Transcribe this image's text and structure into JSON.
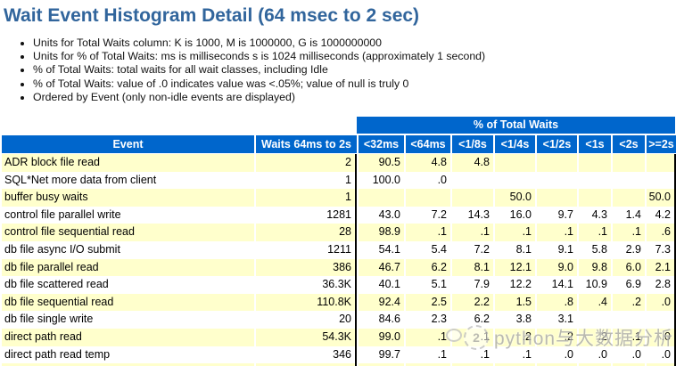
{
  "page": {
    "title": "Wait Event Histogram Detail (64 msec to 2 sec)"
  },
  "notes": [
    "Units for Total Waits column: K is 1000, M is 1000000, G is 1000000000",
    "Units for % of Total Waits: ms is milliseconds s is 1024 milliseconds (approximately 1 second)",
    "% of Total Waits: total waits for all wait classes, including Idle",
    "% of Total Waits: value of .0 indicates value was <.05%; value of null is truly 0",
    "Ordered by Event (only non-idle events are displayed)"
  ],
  "table": {
    "group_header": "% of Total Waits",
    "columns": {
      "event": "Event",
      "waits": "Waits 64ms to 2s",
      "buckets": [
        "<32ms",
        "<64ms",
        "<1/8s",
        "<1/4s",
        "<1/2s",
        "<1s",
        "<2s",
        ">=2s"
      ]
    },
    "rows": [
      {
        "event": "ADR block file read",
        "waits": "2",
        "values": [
          "90.5",
          "4.8",
          "4.8",
          "",
          "",
          "",
          "",
          ""
        ]
      },
      {
        "event": "SQL*Net more data from client",
        "waits": "1",
        "values": [
          "100.0",
          ".0",
          "",
          "",
          "",
          "",
          "",
          ""
        ]
      },
      {
        "event": "buffer busy waits",
        "waits": "1",
        "values": [
          "",
          "",
          "",
          "50.0",
          "",
          "",
          "",
          "50.0"
        ]
      },
      {
        "event": "control file parallel write",
        "waits": "1281",
        "values": [
          "43.0",
          "7.2",
          "14.3",
          "16.0",
          "9.7",
          "4.3",
          "1.4",
          "4.2"
        ]
      },
      {
        "event": "control file sequential read",
        "waits": "28",
        "values": [
          "98.9",
          ".1",
          ".1",
          ".1",
          ".1",
          ".1",
          ".1",
          ".6"
        ]
      },
      {
        "event": "db file async I/O submit",
        "waits": "1211",
        "values": [
          "54.1",
          "5.4",
          "7.2",
          "8.1",
          "9.1",
          "5.8",
          "2.9",
          "7.3"
        ]
      },
      {
        "event": "db file parallel read",
        "waits": "386",
        "values": [
          "46.7",
          "6.2",
          "8.1",
          "12.1",
          "9.0",
          "9.8",
          "6.0",
          "2.1"
        ]
      },
      {
        "event": "db file scattered read",
        "waits": "36.3K",
        "values": [
          "40.1",
          "5.1",
          "7.9",
          "12.2",
          "14.1",
          "10.9",
          "6.9",
          "2.8"
        ]
      },
      {
        "event": "db file sequential read",
        "waits": "110.8K",
        "values": [
          "92.4",
          "2.5",
          "2.2",
          "1.5",
          ".8",
          ".4",
          ".2",
          ".0"
        ]
      },
      {
        "event": "db file single write",
        "waits": "20",
        "values": [
          "84.6",
          "2.3",
          "6.2",
          "3.8",
          "3.1",
          "",
          "",
          ""
        ]
      },
      {
        "event": "direct path read",
        "waits": "54.3K",
        "values": [
          "99.0",
          ".1",
          ".1",
          ".2",
          ".2",
          ".2",
          ".1",
          ".0"
        ]
      },
      {
        "event": "direct path read temp",
        "waits": "346",
        "values": [
          "99.7",
          ".1",
          ".1",
          ".1",
          ".0",
          ".0",
          ".0",
          ".0"
        ]
      }
    ]
  },
  "watermark": {
    "text": "python与大数据分析",
    "badge": "2"
  },
  "colors": {
    "header_bg": "#0066CC",
    "stripe_bg": "#FFFFCC",
    "title_color": "#31659C",
    "rule_color": "#000000"
  }
}
